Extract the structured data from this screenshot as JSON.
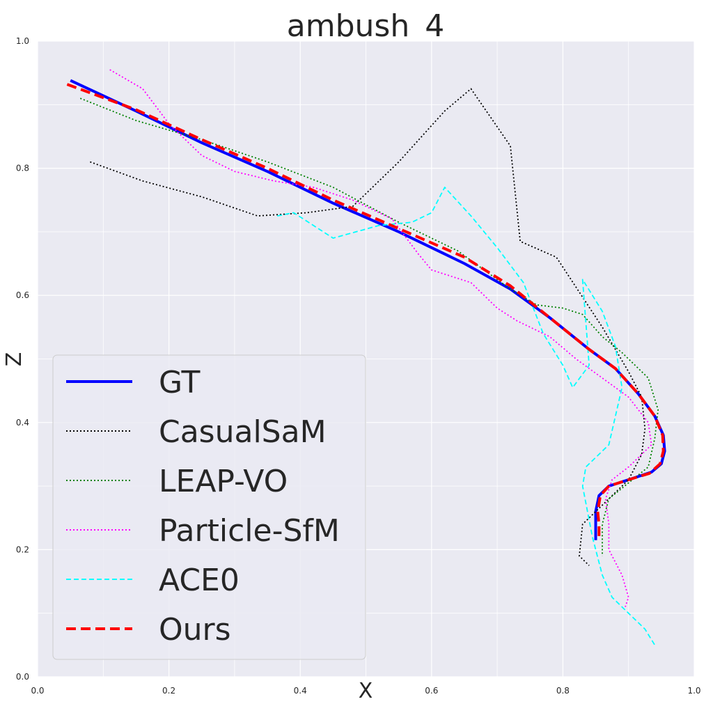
{
  "chart_data": {
    "type": "line",
    "title": "ambush_4",
    "xlabel": "X",
    "ylabel": "Z",
    "xlim": [
      0.0,
      1.0
    ],
    "ylim": [
      0.0,
      1.0
    ],
    "xticks": [
      "0.0",
      "0.2",
      "0.4",
      "0.6",
      "0.8",
      "1.0"
    ],
    "yticks": [
      "0.0",
      "0.2",
      "0.4",
      "0.6",
      "0.8",
      "1.0"
    ],
    "grid": true,
    "legend_position": "lower-left",
    "series": [
      {
        "name": "GT",
        "color": "#0000ff",
        "style": "solid",
        "x": [
          0.05,
          0.15,
          0.25,
          0.35,
          0.45,
          0.55,
          0.65,
          0.72,
          0.78,
          0.84,
          0.88,
          0.915,
          0.94,
          0.953,
          0.955,
          0.95,
          0.935,
          0.9,
          0.87,
          0.855,
          0.85,
          0.85,
          0.85
        ],
        "y": [
          0.938,
          0.89,
          0.84,
          0.795,
          0.745,
          0.7,
          0.65,
          0.61,
          0.565,
          0.515,
          0.485,
          0.445,
          0.41,
          0.38,
          0.355,
          0.335,
          0.322,
          0.31,
          0.3,
          0.285,
          0.26,
          0.24,
          0.215
        ]
      },
      {
        "name": "CasualSaM",
        "color": "#000000",
        "style": "dotted",
        "x": [
          0.08,
          0.16,
          0.25,
          0.335,
          0.41,
          0.48,
          0.55,
          0.62,
          0.66,
          0.72,
          0.735,
          0.79,
          0.86,
          0.9,
          0.92,
          0.925,
          0.92,
          0.9,
          0.86,
          0.83,
          0.825,
          0.84
        ],
        "y": [
          0.81,
          0.78,
          0.755,
          0.725,
          0.73,
          0.74,
          0.81,
          0.89,
          0.925,
          0.835,
          0.685,
          0.66,
          0.55,
          0.48,
          0.44,
          0.39,
          0.35,
          0.31,
          0.27,
          0.24,
          0.19,
          0.175
        ]
      },
      {
        "name": "LEAP-VO",
        "color": "#008000",
        "style": "dotted",
        "x": [
          0.065,
          0.15,
          0.25,
          0.35,
          0.45,
          0.55,
          0.64,
          0.72,
          0.76,
          0.8,
          0.83,
          0.86,
          0.89,
          0.93,
          0.945,
          0.94,
          0.93,
          0.9,
          0.87,
          0.86,
          0.86
        ],
        "y": [
          0.91,
          0.875,
          0.845,
          0.81,
          0.77,
          0.715,
          0.67,
          0.61,
          0.585,
          0.58,
          0.57,
          0.535,
          0.51,
          0.47,
          0.42,
          0.375,
          0.33,
          0.305,
          0.28,
          0.24,
          0.19
        ]
      },
      {
        "name": "Particle-SfM",
        "color": "#ff00ff",
        "style": "dotted",
        "x": [
          0.11,
          0.16,
          0.2,
          0.25,
          0.3,
          0.36,
          0.42,
          0.48,
          0.54,
          0.58,
          0.6,
          0.66,
          0.7,
          0.73,
          0.78,
          0.82,
          0.86,
          0.9,
          0.93,
          0.935,
          0.92,
          0.9,
          0.875,
          0.865,
          0.87,
          0.87,
          0.89,
          0.9,
          0.895
        ],
        "y": [
          0.955,
          0.925,
          0.87,
          0.82,
          0.795,
          0.78,
          0.77,
          0.75,
          0.72,
          0.665,
          0.64,
          0.62,
          0.58,
          0.56,
          0.535,
          0.5,
          0.47,
          0.44,
          0.4,
          0.365,
          0.35,
          0.33,
          0.31,
          0.28,
          0.24,
          0.2,
          0.16,
          0.125,
          0.11
        ]
      },
      {
        "name": "ACE0",
        "color": "#00ffff",
        "style": "dashed",
        "x": [
          0.365,
          0.39,
          0.45,
          0.52,
          0.57,
          0.6,
          0.62,
          0.66,
          0.7,
          0.74,
          0.77,
          0.8,
          0.815,
          0.84,
          0.83,
          0.86,
          0.88,
          0.89,
          0.87,
          0.835,
          0.83,
          0.845,
          0.86,
          0.875,
          0.9,
          0.925,
          0.94
        ],
        "y": [
          0.725,
          0.73,
          0.69,
          0.71,
          0.715,
          0.73,
          0.77,
          0.725,
          0.675,
          0.62,
          0.54,
          0.49,
          0.455,
          0.49,
          0.625,
          0.575,
          0.52,
          0.455,
          0.365,
          0.33,
          0.3,
          0.22,
          0.16,
          0.125,
          0.1,
          0.075,
          0.05
        ]
      },
      {
        "name": "Ours",
        "color": "#ff0000",
        "style": "dashed",
        "x": [
          0.045,
          0.15,
          0.25,
          0.35,
          0.45,
          0.55,
          0.65,
          0.72,
          0.78,
          0.84,
          0.88,
          0.915,
          0.94,
          0.952,
          0.953,
          0.948,
          0.932,
          0.9,
          0.87,
          0.857,
          0.853,
          0.855,
          0.855
        ],
        "y": [
          0.932,
          0.892,
          0.845,
          0.8,
          0.75,
          0.705,
          0.66,
          0.615,
          0.565,
          0.515,
          0.485,
          0.445,
          0.41,
          0.38,
          0.355,
          0.335,
          0.32,
          0.31,
          0.3,
          0.285,
          0.26,
          0.24,
          0.22
        ]
      }
    ]
  }
}
